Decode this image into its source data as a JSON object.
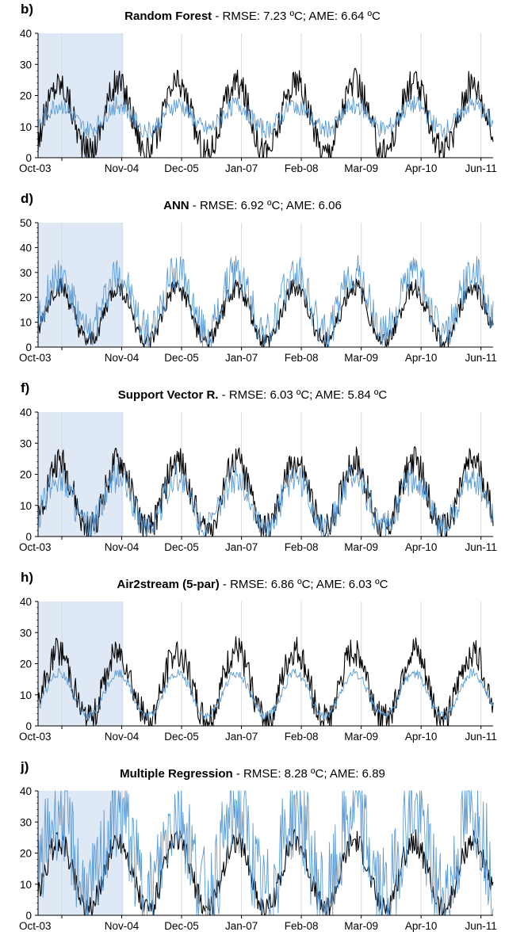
{
  "chart_data": [
    {
      "type": "line",
      "panel_label": "b)",
      "title_model": "Random Forest",
      "title_stats": " - RMSE: 7.23 ºC; AME: 6.64 ºC",
      "ylim": [
        0,
        40
      ],
      "yticks": [
        0,
        10,
        20,
        30,
        40
      ],
      "xtick_labels": [
        "Oct-03",
        "Nov-04",
        "Dec-05",
        "Jan-07",
        "Feb-08",
        "Mar-09",
        "Apr-10",
        "Jun-11"
      ],
      "calibration_period": [
        "Oct-03",
        "Nov-04"
      ],
      "grid": true,
      "series": [
        {
          "color": "#000000",
          "mean": 13,
          "amplitude": 11,
          "noise": 5
        },
        {
          "color": "#5b9bd5",
          "mean": 13,
          "amplitude": 4,
          "noise": 3
        }
      ]
    },
    {
      "type": "line",
      "panel_label": "d)",
      "title_model": "ANN",
      "title_stats": " - RMSE: 6.92 ºC; AME: 6.06",
      "ylim": [
        0,
        50
      ],
      "yticks": [
        0,
        10,
        20,
        30,
        40,
        50
      ],
      "xtick_labels": [
        "Oct-03",
        "Nov-04",
        "Dec-05",
        "Jan-07",
        "Feb-08",
        "Mar-09",
        "Apr-10",
        "Jun-11"
      ],
      "calibration_period": [
        "Oct-03",
        "Nov-04"
      ],
      "grid": true,
      "series": [
        {
          "color": "#000000",
          "mean": 13,
          "amplitude": 11,
          "noise": 4
        },
        {
          "color": "#5b9bd5",
          "mean": 18,
          "amplitude": 12,
          "noise": 8
        }
      ]
    },
    {
      "type": "line",
      "panel_label": "f)",
      "title_model": "Support Vector R.",
      "title_stats": " - RMSE: 6.03 ºC; AME: 5.84 ºC",
      "ylim": [
        0,
        40
      ],
      "yticks": [
        0,
        10,
        20,
        30,
        40
      ],
      "xtick_labels": [
        "Oct-03",
        "Nov-04",
        "Dec-05",
        "Jan-07",
        "Feb-08",
        "Mar-09",
        "Apr-10",
        "Jun-11"
      ],
      "calibration_period": [
        "Oct-03",
        "Nov-04"
      ],
      "grid": true,
      "series": [
        {
          "color": "#000000",
          "mean": 13,
          "amplitude": 11,
          "noise": 5
        },
        {
          "color": "#5b9bd5",
          "mean": 11,
          "amplitude": 8,
          "noise": 5
        }
      ]
    },
    {
      "type": "line",
      "panel_label": "h)",
      "title_model": "Air2stream (5-par)",
      "title_stats": " - RMSE: 6.86 ºC; AME: 6.03 ºC",
      "ylim": [
        0,
        40
      ],
      "yticks": [
        0,
        10,
        20,
        30,
        40
      ],
      "xtick_labels": [
        "Oct-03",
        "Nov-04",
        "Dec-05",
        "Jan-07",
        "Feb-08",
        "Mar-09",
        "Apr-10",
        "Jun-11"
      ],
      "calibration_period": [
        "Oct-03",
        "Nov-04"
      ],
      "grid": true,
      "series": [
        {
          "color": "#000000",
          "mean": 13,
          "amplitude": 11,
          "noise": 5
        },
        {
          "color": "#5b9bd5",
          "mean": 10,
          "amplitude": 7,
          "noise": 1.5
        }
      ]
    },
    {
      "type": "line",
      "panel_label": "j)",
      "title_model": "Multiple Regression",
      "title_stats": " - RMSE: 8.28 ºC; AME: 6.89",
      "ylim": [
        0,
        40
      ],
      "yticks": [
        0,
        10,
        20,
        30,
        40
      ],
      "xtick_labels": [
        "Oct-03",
        "Nov-04",
        "Dec-05",
        "Jan-07",
        "Feb-08",
        "Mar-09",
        "Apr-10",
        "Jun-11"
      ],
      "calibration_period": [
        "Oct-03",
        "Nov-04"
      ],
      "grid": true,
      "series": [
        {
          "color": "#000000",
          "mean": 13,
          "amplitude": 11,
          "noise": 4
        },
        {
          "color": "#5b9bd5",
          "mean": 20,
          "amplitude": 14,
          "noise": 16
        }
      ]
    }
  ]
}
